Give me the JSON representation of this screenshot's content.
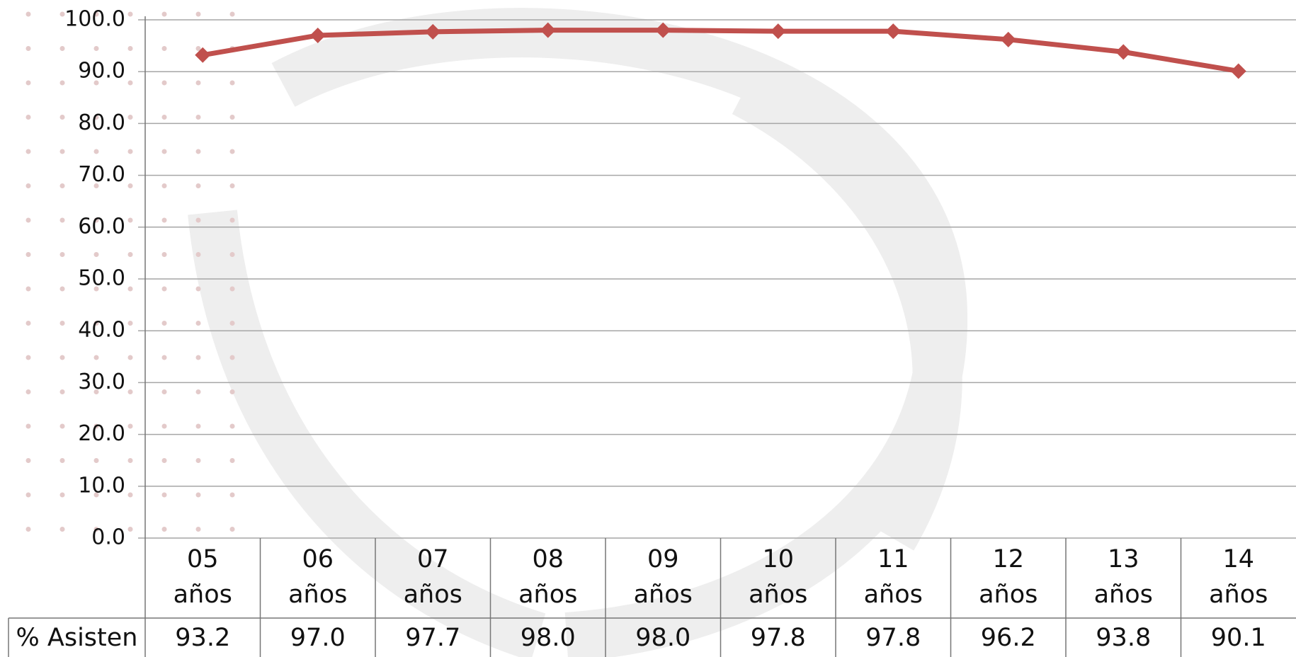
{
  "chart_data": {
    "type": "line",
    "categories": [
      "05 años",
      "06 años",
      "07 años",
      "08 años",
      "09 años",
      "10 años",
      "11 años",
      "12 años",
      "13 años",
      "14 años"
    ],
    "series": [
      {
        "name": "% Asisten",
        "color": "#c0504d",
        "values": [
          93.2,
          97.0,
          97.7,
          98.0,
          98.0,
          97.8,
          97.8,
          96.2,
          93.8,
          90.1
        ],
        "value_labels": [
          "93.2",
          "97.0",
          "97.7",
          "98.0",
          "98.0",
          "97.8",
          "97.8",
          "96.2",
          "93.8",
          "90.1"
        ]
      }
    ],
    "ylim": [
      0,
      100
    ],
    "yticks": [
      {
        "value": 0,
        "label": "0.0"
      },
      {
        "value": 10,
        "label": "10.0"
      },
      {
        "value": 20,
        "label": "20.0"
      },
      {
        "value": 30,
        "label": "30.0"
      },
      {
        "value": 40,
        "label": "40.0"
      },
      {
        "value": 50,
        "label": "50.0"
      },
      {
        "value": 60,
        "label": "60.0"
      },
      {
        "value": 70,
        "label": "70.0"
      },
      {
        "value": 80,
        "label": "80.0"
      },
      {
        "value": 90,
        "label": "90.0"
      },
      {
        "value": 100,
        "label": "100.0"
      }
    ],
    "grid": true
  }
}
